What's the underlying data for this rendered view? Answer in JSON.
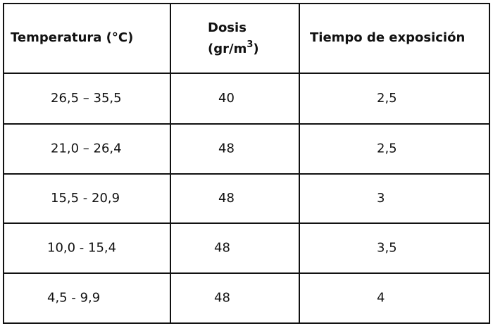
{
  "table": {
    "header": [
      "Temperatura (°C)",
      {
        "main": "Dosis",
        "unit": "(gr/m",
        "sup": "3",
        "close": ")"
      },
      "Tiempo de exposición"
    ],
    "rows": [
      [
        "26,5 – 35,5",
        "40",
        "2,5"
      ],
      [
        "21,0 – 26,4",
        "48",
        "2,5"
      ],
      [
        "15,5 - 20,9",
        "48",
        "3"
      ],
      [
        "10,0 - 15,4",
        "48",
        "3,5"
      ],
      [
        "4,5 - 9,9",
        "48",
        "4"
      ]
    ]
  }
}
